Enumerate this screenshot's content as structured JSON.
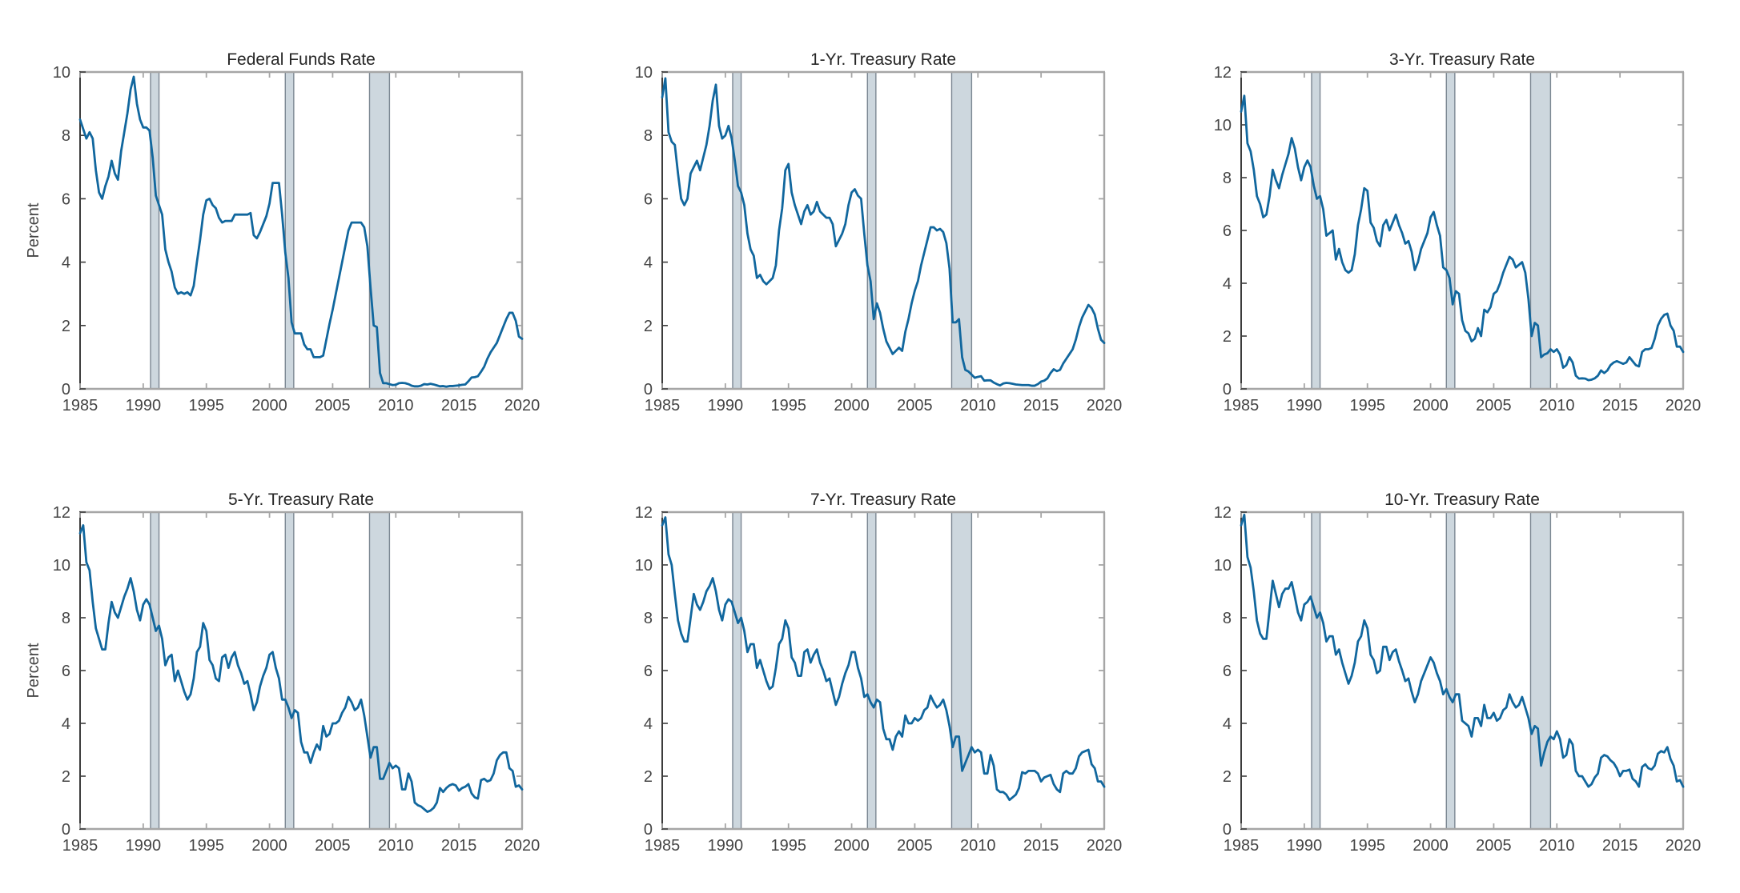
{
  "figure": {
    "background": "#ffffff",
    "description_titles": [
      "Federal Funds Rate",
      "1-Yr. Treasury Rate",
      "3-Yr. Treasury Rate",
      "5-Yr. Treasury Rate",
      "7-Yr. Treasury Rate",
      "10-Yr. Treasury Rate"
    ]
  },
  "styles": {
    "line_color": "#11679E",
    "band_fill": "#CDD7DE",
    "band_edge": "#7B8792",
    "spine_gray": "#A6A6A6",
    "spine_dark": "#3C3C3C",
    "tick_text_color": "#454545",
    "title_color": "#262626",
    "line_width": 2.8
  },
  "chart_data": {
    "type": "line",
    "layout": {
      "rows": 2,
      "cols": 3,
      "x_range": [
        1985,
        2020
      ],
      "x_ticks": [
        1985,
        1990,
        1995,
        2000,
        2005,
        2010,
        2015,
        2020
      ],
      "recession_bands": [
        [
          1990.58,
          1991.25
        ],
        [
          2001.25,
          2001.92
        ],
        [
          2007.92,
          2009.5
        ]
      ],
      "grid": false,
      "legend": "none",
      "x_step_years": 0.25
    },
    "charts": [
      {
        "title": "Federal Funds Rate",
        "ylabel": "Percent",
        "ylim": [
          0,
          10
        ],
        "yticks": [
          0,
          2,
          4,
          6,
          8,
          10
        ],
        "x_start": 1985,
        "x_step": 0.25,
        "values": [
          8.5,
          8.2,
          7.9,
          8.1,
          7.9,
          6.9,
          6.2,
          6.0,
          6.4,
          6.7,
          7.2,
          6.8,
          6.6,
          7.5,
          8.1,
          8.7,
          9.45,
          9.85,
          9.0,
          8.5,
          8.25,
          8.25,
          8.15,
          7.3,
          6.1,
          5.8,
          5.5,
          4.4,
          4.0,
          3.7,
          3.2,
          3.0,
          3.05,
          3.0,
          3.05,
          2.95,
          3.25,
          4.0,
          4.7,
          5.5,
          5.95,
          6.0,
          5.8,
          5.7,
          5.4,
          5.25,
          5.3,
          5.3,
          5.3,
          5.5,
          5.5,
          5.5,
          5.5,
          5.5,
          5.55,
          4.85,
          4.75,
          4.95,
          5.2,
          5.45,
          5.85,
          6.5,
          6.5,
          6.5,
          5.5,
          4.3,
          3.5,
          2.1,
          1.75,
          1.75,
          1.75,
          1.4,
          1.25,
          1.25,
          1.0,
          1.0,
          1.0,
          1.05,
          1.55,
          2.05,
          2.5,
          3.0,
          3.5,
          4.0,
          4.5,
          5.0,
          5.25,
          5.25,
          5.25,
          5.25,
          5.1,
          4.5,
          3.2,
          2.0,
          1.95,
          0.5,
          0.18,
          0.18,
          0.15,
          0.12,
          0.13,
          0.18,
          0.19,
          0.18,
          0.15,
          0.1,
          0.08,
          0.08,
          0.1,
          0.15,
          0.14,
          0.16,
          0.14,
          0.11,
          0.08,
          0.09,
          0.07,
          0.09,
          0.09,
          0.1,
          0.11,
          0.13,
          0.14,
          0.24,
          0.36,
          0.37,
          0.4,
          0.54,
          0.7,
          0.95,
          1.15,
          1.3,
          1.45,
          1.7,
          1.95,
          2.2,
          2.4,
          2.4,
          2.15,
          1.65,
          1.58
        ]
      },
      {
        "title": "1-Yr. Treasury Rate",
        "ylabel": "",
        "ylim": [
          0,
          10
        ],
        "yticks": [
          0,
          2,
          4,
          6,
          8,
          10
        ],
        "x_start": 1985,
        "x_step": 0.25,
        "values": [
          9.2,
          9.8,
          8.1,
          7.8,
          7.7,
          6.8,
          6.0,
          5.8,
          6.0,
          6.8,
          7.0,
          7.2,
          6.9,
          7.3,
          7.7,
          8.3,
          9.1,
          9.6,
          8.3,
          7.9,
          8.0,
          8.3,
          7.9,
          7.2,
          6.4,
          6.2,
          5.8,
          4.9,
          4.4,
          4.2,
          3.5,
          3.6,
          3.4,
          3.3,
          3.4,
          3.5,
          3.9,
          5.0,
          5.7,
          6.9,
          7.1,
          6.2,
          5.8,
          5.5,
          5.2,
          5.6,
          5.8,
          5.5,
          5.6,
          5.9,
          5.6,
          5.5,
          5.4,
          5.4,
          5.2,
          4.5,
          4.7,
          4.9,
          5.2,
          5.8,
          6.2,
          6.3,
          6.1,
          6.0,
          4.9,
          3.9,
          3.4,
          2.2,
          2.7,
          2.4,
          1.9,
          1.5,
          1.3,
          1.1,
          1.2,
          1.3,
          1.2,
          1.8,
          2.2,
          2.7,
          3.1,
          3.4,
          3.9,
          4.3,
          4.7,
          5.1,
          5.1,
          5.0,
          5.05,
          4.95,
          4.6,
          3.8,
          2.1,
          2.1,
          2.2,
          1.0,
          0.6,
          0.55,
          0.45,
          0.35,
          0.38,
          0.4,
          0.26,
          0.27,
          0.27,
          0.2,
          0.15,
          0.11,
          0.17,
          0.19,
          0.18,
          0.16,
          0.14,
          0.13,
          0.12,
          0.12,
          0.12,
          0.1,
          0.1,
          0.15,
          0.23,
          0.26,
          0.33,
          0.5,
          0.62,
          0.56,
          0.6,
          0.8,
          0.95,
          1.1,
          1.25,
          1.55,
          1.95,
          2.25,
          2.45,
          2.65,
          2.55,
          2.35,
          1.9,
          1.55,
          1.45
        ]
      },
      {
        "title": "3-Yr. Treasury Rate",
        "ylabel": "",
        "ylim": [
          0,
          12
        ],
        "yticks": [
          0,
          2,
          4,
          6,
          8,
          10,
          12
        ],
        "x_start": 1985,
        "x_step": 0.25,
        "values": [
          10.5,
          11.1,
          9.3,
          9.0,
          8.3,
          7.3,
          7.0,
          6.5,
          6.6,
          7.3,
          8.3,
          7.9,
          7.6,
          8.1,
          8.5,
          8.9,
          9.5,
          9.1,
          8.4,
          7.9,
          8.4,
          8.65,
          8.4,
          7.7,
          7.2,
          7.3,
          6.8,
          5.8,
          5.9,
          6.0,
          4.9,
          5.3,
          4.8,
          4.5,
          4.4,
          4.5,
          5.1,
          6.2,
          6.8,
          7.6,
          7.5,
          6.3,
          6.1,
          5.6,
          5.4,
          6.2,
          6.4,
          6.0,
          6.3,
          6.6,
          6.2,
          5.9,
          5.5,
          5.6,
          5.2,
          4.5,
          4.8,
          5.3,
          5.6,
          5.9,
          6.5,
          6.7,
          6.2,
          5.8,
          4.6,
          4.5,
          4.2,
          3.2,
          3.7,
          3.6,
          2.6,
          2.2,
          2.1,
          1.8,
          1.9,
          2.3,
          2.0,
          3.0,
          2.9,
          3.1,
          3.6,
          3.7,
          4.0,
          4.4,
          4.7,
          5.0,
          4.9,
          4.6,
          4.7,
          4.8,
          4.4,
          3.4,
          2.0,
          2.5,
          2.4,
          1.2,
          1.3,
          1.35,
          1.5,
          1.4,
          1.5,
          1.3,
          0.8,
          0.9,
          1.2,
          1.0,
          0.5,
          0.39,
          0.4,
          0.39,
          0.33,
          0.35,
          0.4,
          0.5,
          0.7,
          0.6,
          0.7,
          0.9,
          1.0,
          1.05,
          1.0,
          0.95,
          1.0,
          1.2,
          1.05,
          0.9,
          0.85,
          1.4,
          1.5,
          1.5,
          1.55,
          1.9,
          2.4,
          2.65,
          2.8,
          2.85,
          2.4,
          2.2,
          1.6,
          1.6,
          1.4
        ]
      },
      {
        "title": "5-Yr. Treasury Rate",
        "ylabel": "Percent",
        "ylim": [
          0,
          12
        ],
        "yticks": [
          0,
          2,
          4,
          6,
          8,
          10,
          12
        ],
        "x_start": 1985,
        "x_step": 0.25,
        "values": [
          11.2,
          11.5,
          10.1,
          9.8,
          8.6,
          7.6,
          7.2,
          6.8,
          6.8,
          7.8,
          8.6,
          8.2,
          8.0,
          8.4,
          8.8,
          9.1,
          9.5,
          9.0,
          8.3,
          7.9,
          8.5,
          8.7,
          8.5,
          8.0,
          7.5,
          7.7,
          7.2,
          6.2,
          6.5,
          6.6,
          5.6,
          6.0,
          5.6,
          5.2,
          4.9,
          5.1,
          5.7,
          6.7,
          6.9,
          7.8,
          7.5,
          6.4,
          6.2,
          5.7,
          5.6,
          6.5,
          6.6,
          6.1,
          6.5,
          6.7,
          6.2,
          5.9,
          5.5,
          5.6,
          5.1,
          4.5,
          4.8,
          5.4,
          5.8,
          6.1,
          6.6,
          6.7,
          6.1,
          5.7,
          4.9,
          4.9,
          4.6,
          4.2,
          4.5,
          4.4,
          3.3,
          2.9,
          2.9,
          2.5,
          2.9,
          3.2,
          3.0,
          3.9,
          3.5,
          3.6,
          4.0,
          4.0,
          4.1,
          4.4,
          4.6,
          5.0,
          4.8,
          4.5,
          4.6,
          4.9,
          4.3,
          3.5,
          2.7,
          3.1,
          3.1,
          1.9,
          1.9,
          2.2,
          2.5,
          2.3,
          2.4,
          2.3,
          1.5,
          1.5,
          2.1,
          1.8,
          1.0,
          0.9,
          0.85,
          0.75,
          0.65,
          0.7,
          0.8,
          1.0,
          1.55,
          1.4,
          1.55,
          1.65,
          1.7,
          1.65,
          1.45,
          1.55,
          1.6,
          1.7,
          1.35,
          1.2,
          1.15,
          1.85,
          1.9,
          1.8,
          1.85,
          2.1,
          2.6,
          2.8,
          2.9,
          2.9,
          2.3,
          2.2,
          1.6,
          1.65,
          1.5
        ]
      },
      {
        "title": "7-Yr. Treasury Rate",
        "ylabel": "",
        "ylim": [
          0,
          12
        ],
        "yticks": [
          0,
          2,
          4,
          6,
          8,
          10,
          12
        ],
        "x_start": 1985,
        "x_step": 0.25,
        "values": [
          11.5,
          11.8,
          10.4,
          10.0,
          8.9,
          7.9,
          7.4,
          7.1,
          7.1,
          8.0,
          8.9,
          8.5,
          8.3,
          8.6,
          9.0,
          9.2,
          9.5,
          9.0,
          8.3,
          7.9,
          8.5,
          8.7,
          8.6,
          8.2,
          7.8,
          8.0,
          7.5,
          6.7,
          7.0,
          7.0,
          6.1,
          6.4,
          6.0,
          5.6,
          5.3,
          5.4,
          6.1,
          7.0,
          7.2,
          7.9,
          7.6,
          6.5,
          6.3,
          5.8,
          5.8,
          6.7,
          6.8,
          6.3,
          6.6,
          6.8,
          6.3,
          6.0,
          5.6,
          5.7,
          5.2,
          4.7,
          5.0,
          5.5,
          5.9,
          6.2,
          6.7,
          6.7,
          6.1,
          5.7,
          5.0,
          5.1,
          4.8,
          4.6,
          4.9,
          4.8,
          3.8,
          3.4,
          3.4,
          3.0,
          3.5,
          3.7,
          3.5,
          4.3,
          4.0,
          4.0,
          4.2,
          4.1,
          4.2,
          4.5,
          4.6,
          5.05,
          4.8,
          4.6,
          4.7,
          4.9,
          4.5,
          3.9,
          3.1,
          3.5,
          3.5,
          2.2,
          2.5,
          2.8,
          3.1,
          2.9,
          3.0,
          2.9,
          2.1,
          2.1,
          2.8,
          2.4,
          1.5,
          1.4,
          1.4,
          1.3,
          1.1,
          1.2,
          1.3,
          1.55,
          2.15,
          2.1,
          2.2,
          2.2,
          2.2,
          2.1,
          1.8,
          1.95,
          2.0,
          2.05,
          1.7,
          1.5,
          1.4,
          2.1,
          2.2,
          2.1,
          2.1,
          2.3,
          2.75,
          2.9,
          2.95,
          3.0,
          2.45,
          2.3,
          1.8,
          1.8,
          1.6
        ]
      },
      {
        "title": "10-Yr. Treasury Rate",
        "ylabel": "",
        "ylim": [
          0,
          12
        ],
        "yticks": [
          0,
          2,
          4,
          6,
          8,
          10,
          12
        ],
        "x_start": 1985,
        "x_step": 0.25,
        "values": [
          11.5,
          11.9,
          10.3,
          9.9,
          9.0,
          7.9,
          7.4,
          7.2,
          7.2,
          8.3,
          9.4,
          8.9,
          8.4,
          8.9,
          9.1,
          9.1,
          9.35,
          8.8,
          8.2,
          7.9,
          8.5,
          8.6,
          8.8,
          8.4,
          8.0,
          8.2,
          7.8,
          7.1,
          7.3,
          7.3,
          6.6,
          6.8,
          6.3,
          5.9,
          5.5,
          5.8,
          6.3,
          7.1,
          7.3,
          7.9,
          7.6,
          6.6,
          6.4,
          5.9,
          6.0,
          6.9,
          6.9,
          6.4,
          6.7,
          6.8,
          6.35,
          6.0,
          5.6,
          5.7,
          5.2,
          4.8,
          5.1,
          5.6,
          5.9,
          6.2,
          6.5,
          6.3,
          5.9,
          5.6,
          5.1,
          5.3,
          5.0,
          4.8,
          5.1,
          5.1,
          4.1,
          4.0,
          3.9,
          3.5,
          4.2,
          4.2,
          3.9,
          4.7,
          4.2,
          4.2,
          4.4,
          4.1,
          4.2,
          4.5,
          4.6,
          5.1,
          4.8,
          4.6,
          4.7,
          5.0,
          4.6,
          4.2,
          3.6,
          3.9,
          3.8,
          2.4,
          2.9,
          3.3,
          3.5,
          3.4,
          3.7,
          3.4,
          2.7,
          2.8,
          3.4,
          3.2,
          2.2,
          2.0,
          2.0,
          1.8,
          1.6,
          1.7,
          1.95,
          2.1,
          2.7,
          2.8,
          2.75,
          2.6,
          2.5,
          2.3,
          2.0,
          2.2,
          2.2,
          2.25,
          1.9,
          1.8,
          1.6,
          2.35,
          2.45,
          2.3,
          2.25,
          2.4,
          2.85,
          2.95,
          2.9,
          3.1,
          2.65,
          2.4,
          1.8,
          1.85,
          1.6
        ]
      }
    ]
  }
}
